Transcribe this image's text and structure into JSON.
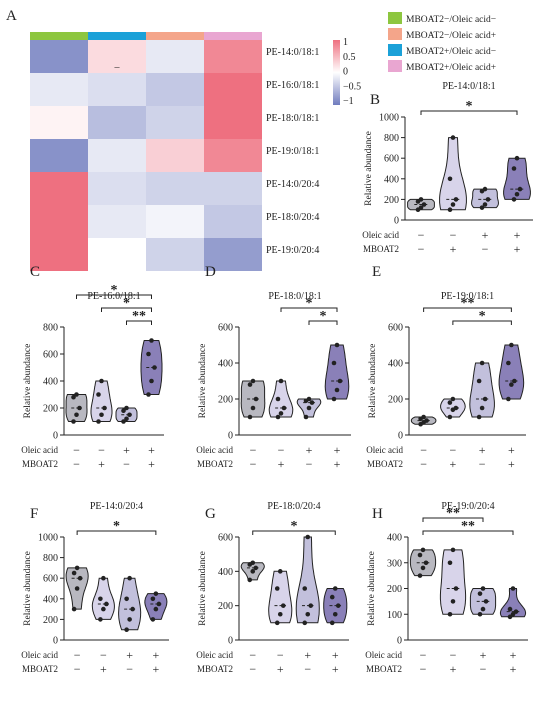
{
  "panel_labels": {
    "A": "A",
    "B": "B",
    "C": "C",
    "D": "D",
    "E": "E",
    "F": "F",
    "G": "G",
    "H": "H"
  },
  "legend": [
    {
      "label": "MBOAT2−/Oleic acid−",
      "color": "#8dc63f"
    },
    {
      "label": "MBOAT2−/Oleic acid+",
      "color": "#f4a58a"
    },
    {
      "label": "MBOAT2+/Oleic acid−",
      "color": "#1ba1d8"
    },
    {
      "label": "MBOAT2+/Oleic acid+",
      "color": "#e9a6d1"
    }
  ],
  "colors": {
    "violin_fill": [
      "#b8b8c0",
      "#d8d4ea",
      "#c2c0dc",
      "#8a80b8"
    ],
    "stroke": "#222222"
  },
  "group_rows": {
    "oleic": "Oleic acid",
    "mboat": "MBOAT2",
    "oleic_signs": [
      "−",
      "−",
      "+",
      "+"
    ],
    "mboat_signs": [
      "−",
      "+",
      "−",
      "+"
    ]
  },
  "chart_data": [
    {
      "panel": "A",
      "type": "heatmap",
      "rows": [
        "PE-14:0/18:1",
        "PE-16:0/18:1",
        "PE-18:0/18:1",
        "PE-19:0/18:1",
        "PE-14:0/20:4",
        "PE-18:0/20:4",
        "PE-19:0/20:4"
      ],
      "column_groups": [
        "MBOAT2−/Oleic acid−",
        "MBOAT2+/Oleic acid−",
        "MBOAT2−/Oleic acid+",
        "MBOAT2+/Oleic acid+"
      ],
      "values": [
        [
          -1,
          0.3,
          -0.2,
          1
        ],
        [
          -0.2,
          -0.3,
          -0.5,
          1.2
        ],
        [
          0.1,
          -0.6,
          -0.4,
          1.2
        ],
        [
          -1,
          -0.2,
          0.4,
          1
        ],
        [
          1.2,
          -0.3,
          -0.4,
          -0.4
        ],
        [
          1.2,
          -0.2,
          -0.1,
          -0.5
        ],
        [
          1.2,
          0,
          -0.4,
          -0.9
        ]
      ],
      "cell_annotation": "–",
      "colorbar_ticks": [
        "1",
        "0.5",
        "0",
        "−0.5",
        "−1"
      ]
    },
    {
      "panel": "B",
      "type": "violin",
      "title": "PE-14:0/18:1",
      "ylabel": "Relative abundance",
      "ylim": [
        0,
        1000
      ],
      "yticks": [
        0,
        200,
        400,
        600,
        800,
        1000
      ],
      "groups": [
        [
          100,
          120,
          150,
          180,
          200
        ],
        [
          100,
          150,
          200,
          400,
          800
        ],
        [
          120,
          150,
          200,
          280,
          300
        ],
        [
          200,
          250,
          300,
          500,
          600
        ]
      ],
      "significance": [
        {
          "from": 1,
          "to": 4,
          "label": "*"
        }
      ]
    },
    {
      "panel": "C",
      "type": "violin",
      "title": "PE-16:0/18:1",
      "ylabel": "Relative abundance",
      "ylim": [
        0,
        800
      ],
      "yticks": [
        0,
        200,
        400,
        600,
        800
      ],
      "groups": [
        [
          100,
          150,
          200,
          280,
          300
        ],
        [
          100,
          150,
          200,
          300,
          400
        ],
        [
          100,
          120,
          150,
          180,
          200
        ],
        [
          300,
          400,
          500,
          600,
          700
        ]
      ],
      "significance": [
        {
          "from": 1,
          "to": 4,
          "label": "*"
        },
        {
          "from": 2,
          "to": 4,
          "label": "*"
        },
        {
          "from": 3,
          "to": 4,
          "label": "**"
        }
      ]
    },
    {
      "panel": "D",
      "type": "violin",
      "title": "PE-18:0/18:1",
      "ylabel": "Relative abundance",
      "ylim": [
        0,
        600
      ],
      "yticks": [
        0,
        200,
        400,
        600
      ],
      "groups": [
        [
          100,
          150,
          200,
          280,
          300
        ],
        [
          100,
          120,
          150,
          200,
          300
        ],
        [
          100,
          150,
          180,
          190,
          200
        ],
        [
          200,
          250,
          300,
          400,
          500
        ]
      ],
      "significance": [
        {
          "from": 2,
          "to": 4,
          "label": "*"
        },
        {
          "from": 3,
          "to": 4,
          "label": "*"
        }
      ]
    },
    {
      "panel": "E",
      "type": "violin",
      "title": "PE-19:0/18:1",
      "ylabel": "Relative abundance",
      "ylim": [
        0,
        600
      ],
      "yticks": [
        0,
        200,
        400,
        600
      ],
      "groups": [
        [
          60,
          70,
          80,
          90,
          100
        ],
        [
          100,
          140,
          150,
          180,
          200
        ],
        [
          100,
          150,
          200,
          300,
          400
        ],
        [
          200,
          280,
          300,
          400,
          500
        ]
      ],
      "significance": [
        {
          "from": 1,
          "to": 4,
          "label": "**"
        },
        {
          "from": 2,
          "to": 4,
          "label": "*"
        }
      ]
    },
    {
      "panel": "F",
      "type": "violin",
      "title": "PE-14:0/20:4",
      "ylabel": "Relative abundance",
      "ylim": [
        0,
        1000
      ],
      "yticks": [
        0,
        200,
        400,
        600,
        800,
        1000
      ],
      "groups": [
        [
          300,
          500,
          600,
          650,
          700
        ],
        [
          200,
          300,
          350,
          400,
          600
        ],
        [
          100,
          200,
          300,
          400,
          600
        ],
        [
          200,
          300,
          350,
          400,
          450
        ]
      ],
      "significance": [
        {
          "from": 1,
          "to": 4,
          "label": "*"
        }
      ]
    },
    {
      "panel": "G",
      "type": "violin",
      "title": "PE-18:0/20:4",
      "ylabel": "Relative abundance",
      "ylim": [
        0,
        600
      ],
      "yticks": [
        0,
        200,
        400,
        600
      ],
      "groups": [
        [
          350,
          400,
          420,
          440,
          450
        ],
        [
          100,
          150,
          200,
          300,
          400
        ],
        [
          100,
          150,
          200,
          300,
          600
        ],
        [
          100,
          150,
          200,
          250,
          300
        ]
      ],
      "significance": [
        {
          "from": 1,
          "to": 4,
          "label": "*"
        }
      ]
    },
    {
      "panel": "H",
      "type": "violin",
      "title": "PE-19:0/20:4",
      "ylabel": "Relative abundance",
      "ylim": [
        0,
        400
      ],
      "yticks": [
        0,
        100,
        200,
        300,
        400
      ],
      "groups": [
        [
          250,
          280,
          300,
          330,
          350
        ],
        [
          100,
          150,
          200,
          300,
          350
        ],
        [
          100,
          120,
          150,
          180,
          200
        ],
        [
          90,
          100,
          110,
          120,
          200
        ]
      ],
      "significance": [
        {
          "from": 1,
          "to": 3,
          "label": "**"
        },
        {
          "from": 1,
          "to": 4,
          "label": "**"
        }
      ]
    }
  ]
}
